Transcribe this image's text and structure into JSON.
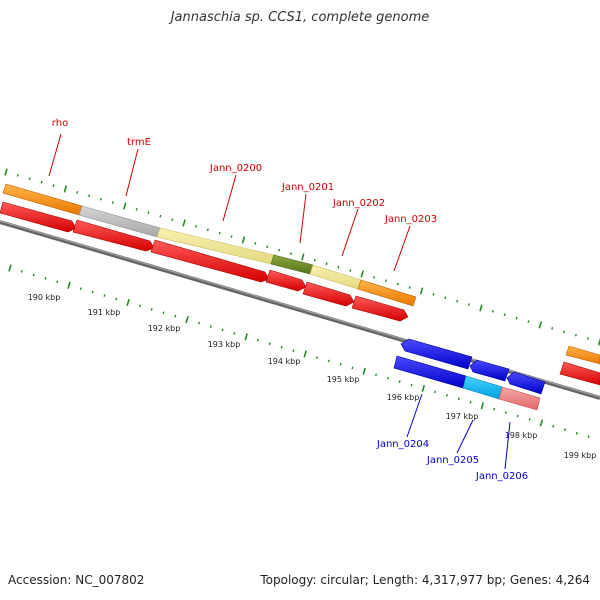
{
  "title": "Jannaschia sp. CCS1, complete genome",
  "accession": "Accession: NC_007802",
  "summary": "Topology: circular; Length: 4,317,977 bp; Genes: 4,264",
  "colors": {
    "forward_gene": "#ff0000",
    "reverse_gene": "#0000ff",
    "orange_gene": "#ff8c00",
    "gray_gene": "#bbbbbb",
    "khaki_gene": "#f0e68c",
    "olive_gene": "#6b8e23",
    "cyan_gene": "#00bfff",
    "pink_gene": "#f08080",
    "axis": "#888888",
    "tick": "#228b22",
    "forward_label": "#cc0000",
    "reverse_label": "#0000cc"
  },
  "scale_labels": [
    "190 kbp",
    "191 kbp",
    "192 kbp",
    "193 kbp",
    "194 kbp",
    "195 kbp",
    "196 kbp",
    "197 kbp",
    "198 kbp",
    "199 kbp"
  ],
  "forward_gene_labels": [
    "rho",
    "trmE",
    "Jann_0200",
    "Jann_0201",
    "Jann_0202",
    "Jann_0203"
  ],
  "reverse_gene_labels": [
    "Jann_0204",
    "Jann_0205",
    "Jann_0206"
  ]
}
